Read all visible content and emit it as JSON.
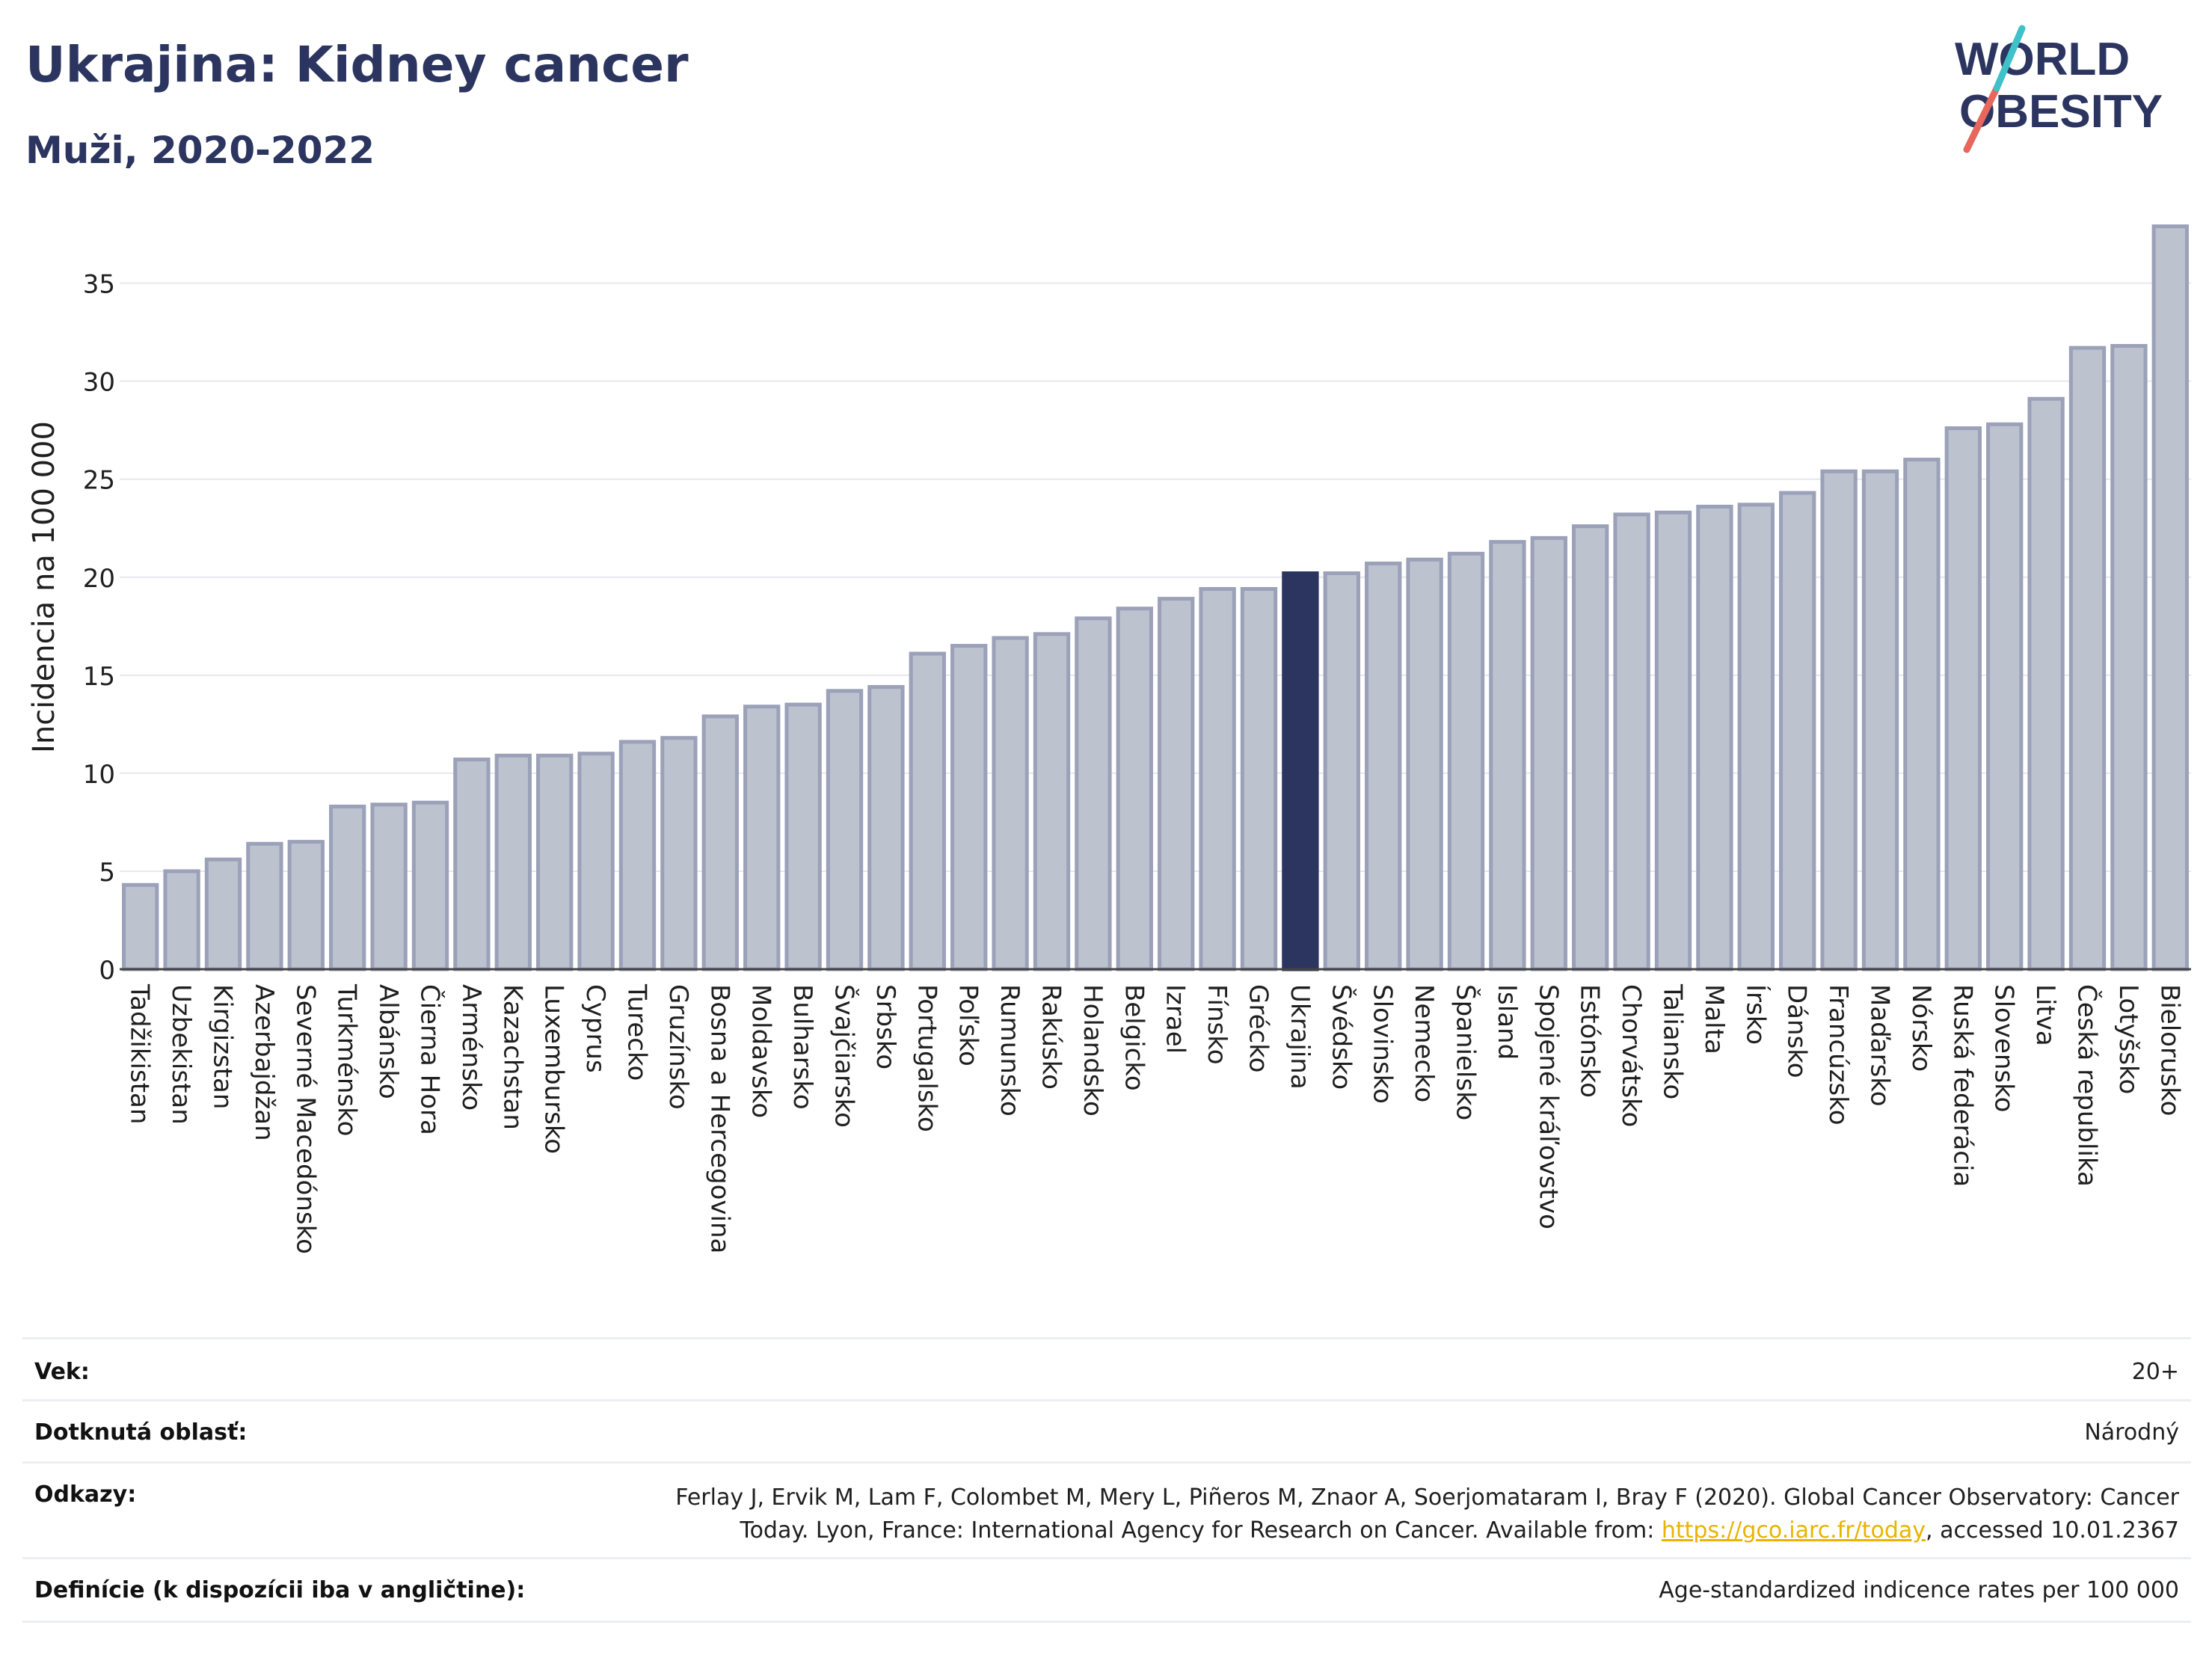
{
  "title": "Ukrajina: Kidney cancer",
  "subtitle": "Muži, 2020-2022",
  "logo": {
    "line1": "WORLD",
    "line2": "OBESITY"
  },
  "colors": {
    "bar": "#bdc2cf",
    "bar_stroke": "#9aa1b8",
    "highlight": "#2b3560",
    "title": "#2b3560",
    "grid": "#e6e8ee",
    "link": "#e8b400",
    "logo_teal": "#3fc1c9",
    "logo_red": "#e8675c"
  },
  "chart_data": {
    "type": "bar",
    "ylabel": "Incidencia na 100 000",
    "xlabel": "",
    "ylim": [
      0,
      38
    ],
    "yticks": [
      0,
      5,
      10,
      15,
      20,
      25,
      30,
      35
    ],
    "highlight": "Ukrajina",
    "grid": true,
    "categories": [
      "Tadžikistan",
      "Uzbekistan",
      "Kirgizstan",
      "Azerbajdžan",
      "Severné Macedónsko",
      "Turkménsko",
      "Albánsko",
      "Čierna Hora",
      "Arménsko",
      "Kazachstan",
      "Luxembursko",
      "Cyprus",
      "Turecko",
      "Gruzínsko",
      "Bosna a Hercegovina",
      "Moldavsko",
      "Bulharsko",
      "Švajčiarsko",
      "Srbsko",
      "Portugalsko",
      "Poľsko",
      "Rumunsko",
      "Rakúsko",
      "Holandsko",
      "Belgicko",
      "Izrael",
      "Fínsko",
      "Grécko",
      "Ukrajina",
      "Švédsko",
      "Slovinsko",
      "Nemecko",
      "Španielsko",
      "Island",
      "Spojené kráľovstvo",
      "Estónsko",
      "Chorvátsko",
      "Taliansko",
      "Malta",
      "Írsko",
      "Dánsko",
      "Francúzsko",
      "Maďarsko",
      "Nórsko",
      "Ruská federácia",
      "Slovensko",
      "Litva",
      "Česká republika",
      "Lotyšsko",
      "Bielorusko"
    ],
    "values": [
      4.3,
      5.0,
      5.6,
      6.4,
      6.5,
      8.3,
      8.4,
      8.5,
      10.7,
      10.9,
      10.9,
      11.0,
      11.6,
      11.8,
      12.9,
      13.4,
      13.5,
      14.2,
      14.4,
      16.1,
      16.5,
      16.9,
      17.1,
      17.9,
      18.4,
      18.9,
      19.4,
      19.4,
      20.2,
      20.2,
      20.7,
      20.9,
      21.2,
      21.8,
      22.0,
      22.6,
      23.2,
      23.3,
      23.6,
      23.7,
      24.3,
      25.4,
      25.4,
      26.0,
      27.6,
      27.8,
      29.1,
      31.7,
      31.8,
      37.9
    ]
  },
  "info": {
    "age_label": "Vek:",
    "age_value": "20+",
    "area_label": "Dotknutá oblasť:",
    "area_value": "Národný",
    "refs_label": "Odkazy:",
    "refs_line1": "Ferlay J, Ervik M, Lam F, Colombet M, Mery L, Piñeros M, Znaor A, Soerjomataram I, Bray F (2020). Global Cancer Observatory: Cancer",
    "refs_line2_pre": "Today. Lyon, France: International Agency for Research on Cancer. Available from: ",
    "refs_link": "https://gco.iarc.fr/today",
    "refs_line2_post": ", accessed 10.01.2367",
    "def_label": "Definície (k dispozícii iba v angličtine):",
    "def_value": "Age-standardized indicence rates per 100 000"
  }
}
